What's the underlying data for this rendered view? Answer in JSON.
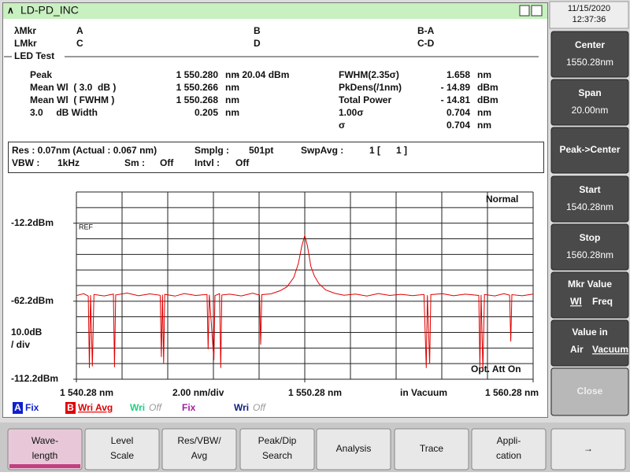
{
  "window": {
    "title": "LD-PD_INC"
  },
  "clock": {
    "date": "11/15/2020",
    "time": "12:37:36"
  },
  "markers": {
    "wl_label": "λMkr",
    "a": "A",
    "b": "B",
    "ba": "B-A",
    "level_label": "LMkr",
    "c": "C",
    "d": "D",
    "cd": "C-D"
  },
  "led_test": {
    "title": "LED Test",
    "left_rows": [
      [
        "Peak",
        "1 550.280",
        "nm"
      ],
      [
        "Mean Wl  ( 3.0  dB )",
        "1 550.266",
        "nm"
      ],
      [
        "Mean Wl  ( FWHM )",
        "1 550.268",
        "nm"
      ],
      [
        "3.0     dB Width",
        "0.205",
        "nm"
      ]
    ],
    "peak_level": "- 20.04 dBm",
    "right_rows": [
      [
        "FWHM(2.35σ)",
        "1.658",
        "nm"
      ],
      [
        "PkDens(/1nm)",
        "- 14.89",
        "dBm"
      ],
      [
        "Total Power",
        "- 14.81",
        "dBm"
      ],
      [
        "1.00σ",
        "0.704",
        "nm"
      ],
      [
        "σ",
        "0.704",
        "nm"
      ]
    ]
  },
  "settings": {
    "res": "Res : 0.07nm (Actual : 0.067 nm)",
    "smplg_label": "Smplg :",
    "smplg": "501pt",
    "swpavg_label": "SwpAvg :",
    "swpavg": "1 [      1 ]",
    "vbw_label": "VBW :",
    "vbw": "1kHz",
    "sm_label": "Sm :",
    "sm": "Off",
    "intvl_label": "Intvl :",
    "intvl": "Off"
  },
  "chart_data": {
    "type": "line",
    "color": "#e00000",
    "x": [
      1540.28,
      1540.6,
      1540.8,
      1540.85,
      1540.9,
      1540.98,
      1541.05,
      1541.5,
      1541.9,
      1541.95,
      1542.0,
      1542.5,
      1543.0,
      1543.5,
      1543.95,
      1544.0,
      1544.05,
      1544.1,
      1544.15,
      1544.6,
      1545.0,
      1545.5,
      1546.0,
      1546.05,
      1546.1,
      1546.3,
      1546.35,
      1546.55,
      1546.6,
      1546.65,
      1547.0,
      1547.5,
      1548.0,
      1548.3,
      1548.35,
      1548.4,
      1548.8,
      1549.2,
      1549.5,
      1549.8,
      1550.0,
      1550.15,
      1550.28,
      1550.4,
      1550.55,
      1550.7,
      1550.9,
      1551.2,
      1551.6,
      1552.0,
      1552.5,
      1553.0,
      1553.5,
      1554.0,
      1554.5,
      1555.0,
      1555.5,
      1555.6,
      1555.65,
      1555.75,
      1555.8,
      1556.3,
      1556.8,
      1557.3,
      1557.9,
      1557.95,
      1558.0,
      1558.08,
      1558.15,
      1558.6,
      1559.0,
      1559.25,
      1559.3,
      1559.35,
      1559.8,
      1560.28
    ],
    "values": [
      -58.6,
      -57.4,
      -58.9,
      -105.0,
      -58.3,
      -104.0,
      -57.9,
      -58.8,
      -57.6,
      -104.5,
      -58.2,
      -57.0,
      -58.7,
      -57.5,
      -58.4,
      -98.0,
      -58.0,
      -102.0,
      -57.8,
      -58.9,
      -57.3,
      -58.5,
      -57.9,
      -93.0,
      -58.1,
      -100.0,
      -58.6,
      -57.4,
      -105.0,
      -58.2,
      -57.7,
      -58.8,
      -57.1,
      -58.3,
      -90.0,
      -58.0,
      -57.5,
      -55.5,
      -53.0,
      -47.0,
      -38.0,
      -27.0,
      -20.04,
      -27.0,
      -40.0,
      -46.0,
      -51.0,
      -55.0,
      -57.2,
      -58.4,
      -57.6,
      -58.9,
      -57.3,
      -58.5,
      -57.8,
      -58.6,
      -57.9,
      -105.0,
      -58.4,
      -102.0,
      -58.0,
      -57.4,
      -58.7,
      -57.7,
      -58.5,
      -104.0,
      -58.2,
      -106.0,
      -57.9,
      -58.8,
      -57.4,
      -58.3,
      -88.0,
      -58.0,
      -58.7,
      -57.6
    ],
    "xlim": [
      1540.28,
      1560.28
    ],
    "ylim": [
      -112.2,
      7.8
    ],
    "xticks": [
      {
        "value": 1540.28,
        "label": "1 540.28 nm"
      },
      {
        "value": 1550.28,
        "label": "1 550.28 nm"
      },
      {
        "value": 1560.28,
        "label": "1 560.28 nm"
      }
    ],
    "yticks": [
      {
        "value": -12.2,
        "label": "-12.2dBm"
      },
      {
        "value": -62.2,
        "label": "-62.2dBm"
      },
      {
        "value": -112.2,
        "label": "-112.2dBm"
      }
    ],
    "scale_line1": "10.0dB",
    "scale_line2": "/ div",
    "span_per_div": "2.00 nm/div",
    "medium": "in Vacuum",
    "mode": "Normal",
    "ref": "REF",
    "att": "Opt. Att On"
  },
  "traces": [
    {
      "letter": "A",
      "mode": "Fix",
      "color": "#1020d0"
    },
    {
      "letter": "B",
      "mode": "Wri Avg",
      "color": "#e00000"
    },
    {
      "mode": "Wri",
      "state": "Off",
      "color": "#20d080"
    },
    {
      "mode": "Fix",
      "color": "#a020a0"
    },
    {
      "mode": "Wri",
      "state": "Off",
      "color": "#102080"
    }
  ],
  "side_keys": [
    [
      "Center",
      "1550.28nm"
    ],
    [
      "Span",
      "20.00nm"
    ],
    [
      "Peak->Center"
    ],
    [
      "Start",
      "1540.28nm"
    ],
    [
      "Stop",
      "1560.28nm"
    ],
    [
      "Mkr Value",
      "Wl",
      "Freq"
    ],
    [
      "Value in",
      "Air",
      "Vacuum"
    ],
    [
      "Close"
    ]
  ],
  "bottom_keys": [
    [
      "Wave-",
      "length"
    ],
    [
      "Level",
      "Scale"
    ],
    [
      "Res/VBW/",
      "Avg"
    ],
    [
      "Peak/Dip",
      "Search"
    ],
    [
      "Analysis"
    ],
    [
      "Trace"
    ],
    [
      "Appli-",
      "cation"
    ],
    [
      "→"
    ]
  ]
}
